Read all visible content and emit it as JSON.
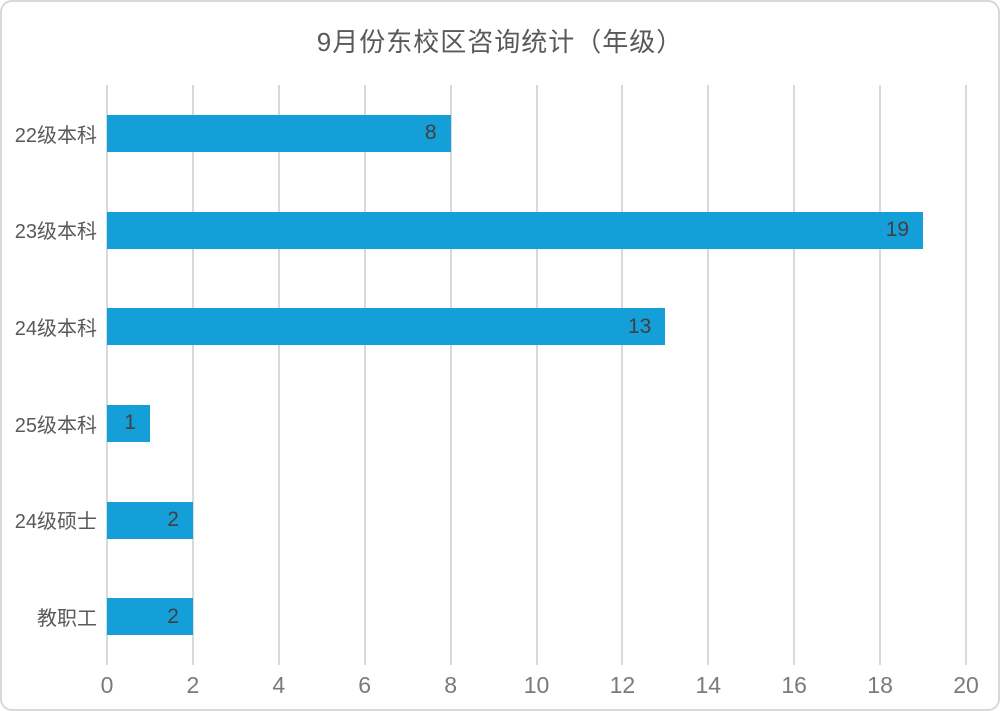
{
  "chart_data": {
    "type": "bar",
    "orientation": "horizontal",
    "title": "9月份东校区咨询统计（年级）",
    "categories": [
      "22级本科",
      "23级本科",
      "24级本科",
      "25级本科",
      "24级硕士",
      "教职工"
    ],
    "values": [
      8,
      19,
      13,
      1,
      2,
      2
    ],
    "data_labels": [
      "8",
      "19",
      "13",
      "1",
      "2",
      "2"
    ],
    "xlabel": "",
    "ylabel": "",
    "xlim": [
      0,
      20
    ],
    "x_ticks": [
      0,
      2,
      4,
      6,
      8,
      10,
      12,
      14,
      16,
      18,
      20
    ],
    "grid": true,
    "legend": "none",
    "colors": {
      "bar": "#159FD8",
      "gridline": "#D9D9D9",
      "frame_border": "#D9D9D9",
      "title_text": "#595959",
      "category_text": "#595959",
      "tick_text": "#7A7A7A",
      "data_label_text": "#404040",
      "background": "#FFFFFF"
    }
  }
}
